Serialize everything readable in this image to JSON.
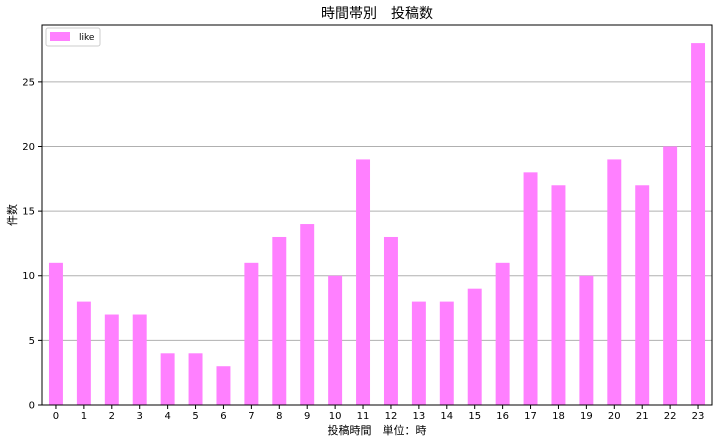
{
  "chart_data": {
    "type": "bar",
    "title": "時間帯別　投稿数",
    "xlabel": "投稿時間　単位：時",
    "ylabel": "件数",
    "categories": [
      "0",
      "1",
      "2",
      "3",
      "4",
      "5",
      "6",
      "7",
      "8",
      "9",
      "10",
      "11",
      "12",
      "13",
      "14",
      "15",
      "16",
      "17",
      "18",
      "19",
      "20",
      "21",
      "22",
      "23"
    ],
    "series": [
      {
        "name": "like",
        "color": "#ff80ff",
        "values": [
          11,
          8,
          7,
          7,
          4,
          4,
          3,
          11,
          13,
          14,
          10,
          19,
          13,
          8,
          8,
          9,
          11,
          18,
          17,
          10,
          19,
          17,
          20,
          28
        ]
      }
    ],
    "yticks": [
      0,
      5,
      10,
      15,
      20,
      25
    ],
    "ylim": [
      0,
      29.4
    ],
    "grid": "horizontal",
    "legend_position": "top-left",
    "gridline_color": "#b0b0b0"
  }
}
